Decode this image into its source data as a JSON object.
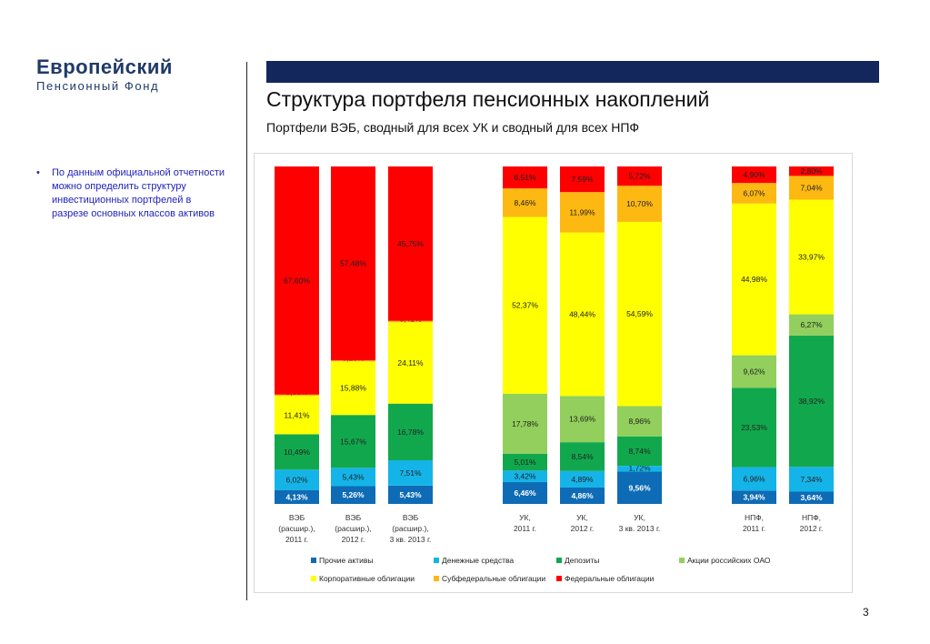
{
  "logo": {
    "line1": "Европейский",
    "line2": "Пенсионный Фонд"
  },
  "title": "Структура портфеля пенсионных накоплений",
  "subtitle": "Портфели ВЭБ, сводный для всех УК и сводный для всех НПФ",
  "bullet": {
    "marker": "•",
    "text": "По данным официальной отчетности можно определить структуру инвестиционных портфелей в разрезе основных классов активов"
  },
  "page_number": "3",
  "colors": {
    "accent_bar": "#13275c",
    "bullet_text": "#2222bb",
    "series": [
      "#0e6bb5",
      "#14b4e8",
      "#11a84d",
      "#92cf5c",
      "#ffff00",
      "#fdb812",
      "#fe0000"
    ]
  },
  "chart_data": {
    "type": "bar",
    "stacked": true,
    "normalized_percent": true,
    "title": "",
    "xlabel": "",
    "ylabel": "",
    "ylim": [
      0,
      100
    ],
    "grid": false,
    "legend_position": "bottom",
    "categories": [
      [
        "ВЭБ",
        "(расшир.),",
        "2011 г."
      ],
      [
        "ВЭБ",
        "(расшир.),",
        "2012 г."
      ],
      [
        "ВЭБ",
        "(расшир.),",
        "3 кв. 2013 г."
      ],
      [
        "УК,",
        "2011 г."
      ],
      [
        "УК,",
        "2012 г."
      ],
      [
        "УК,",
        "3 кв. 2013 г."
      ],
      [
        "НПФ,",
        "2011 г."
      ],
      [
        "НПФ,",
        "2012 г."
      ]
    ],
    "series": [
      {
        "name": "Прочие активы",
        "values": [
          4.13,
          5.26,
          5.43,
          6.46,
          4.86,
          9.56,
          3.94,
          3.64
        ],
        "labels": [
          "4,13%",
          "5,26%",
          "5,43%",
          "6,46%",
          "4,86%",
          "9,56%",
          "3,94%",
          "3,64%"
        ]
      },
      {
        "name": "Денежные средства",
        "values": [
          6.02,
          5.43,
          7.51,
          3.42,
          4.89,
          1.72,
          6.96,
          7.34
        ],
        "labels": [
          "6,02%",
          "5,43%",
          "7,51%",
          "3,42%",
          "4,89%",
          "1,72%",
          "6,96%",
          "7,34%"
        ]
      },
      {
        "name": "Депозиты",
        "values": [
          10.49,
          15.67,
          16.78,
          5.01,
          8.54,
          8.74,
          23.53,
          38.92
        ],
        "labels": [
          "10,49%",
          "15,67%",
          "16,78%",
          "5,01%",
          "8,54%",
          "8,74%",
          "23,53%",
          "38,92%"
        ]
      },
      {
        "name": "Акции российских ОАО",
        "values": [
          0,
          0,
          0,
          17.78,
          13.69,
          8.96,
          9.62,
          6.27
        ],
        "labels": [
          "",
          "",
          "",
          "17,78%",
          "13,69%",
          "8,96%",
          "9,62%",
          "6,27%"
        ]
      },
      {
        "name": "Корпоративные облигации",
        "values": [
          11.41,
          15.88,
          24.11,
          52.37,
          48.44,
          54.59,
          44.98,
          33.97
        ],
        "labels": [
          "11,41%",
          "15,88%",
          "24,11%",
          "52,37%",
          "48,44%",
          "54,59%",
          "44,98%",
          "33,97%"
        ]
      },
      {
        "name": "Субфедеральные облигации",
        "values": [
          0.35,
          0.28,
          0.41,
          8.46,
          11.99,
          10.7,
          6.07,
          7.04
        ],
        "labels": [
          "0,35%",
          "0,28%",
          "0,41%",
          "8,46%",
          "11,99%",
          "10,70%",
          "6,07%",
          "7,04%"
        ]
      },
      {
        "name": "Федеральные облигации",
        "values": [
          67.6,
          57.48,
          45.75,
          6.51,
          7.59,
          5.72,
          4.9,
          2.8
        ],
        "labels": [
          "67,60%",
          "57,48%",
          "45,75%",
          "6,51%",
          "7,59%",
          "5,72%",
          "4,90%",
          "2,80%"
        ]
      }
    ]
  }
}
